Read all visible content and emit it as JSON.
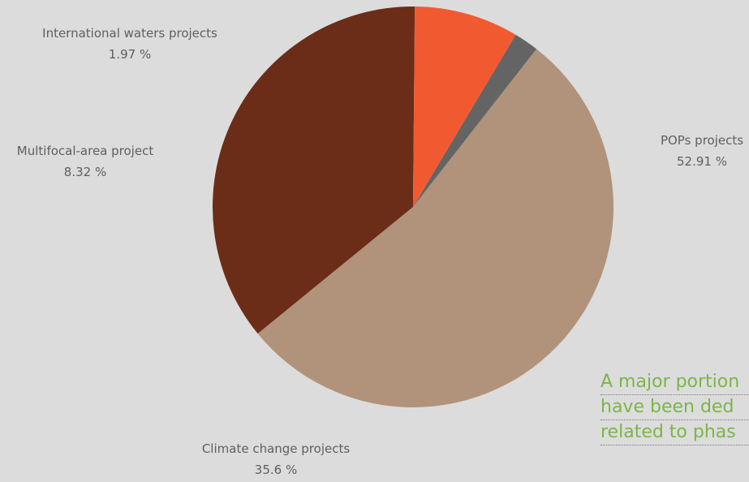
{
  "chart_data": {
    "type": "pie",
    "slices": [
      {
        "label": "POPs projects",
        "value": 52.91,
        "value_text": "52.91 %",
        "color": "#b0937a"
      },
      {
        "label": "Climate change projects",
        "value": 35.6,
        "value_text": "35.6 %",
        "color": "#6b2d18"
      },
      {
        "label": "Multifocal-area project",
        "value": 8.32,
        "value_text": "8.32 %",
        "color": "#f15a31"
      },
      {
        "label": "International waters projects",
        "value": 1.97,
        "value_text": "1.97 %",
        "color": "#646464"
      }
    ],
    "start_angle_deg": -52,
    "direction": "clockwise"
  },
  "callout": {
    "lines": [
      "A major portion",
      "have been ded",
      "related to phas"
    ],
    "color": "#7ab648"
  },
  "background": "#dcdcdc"
}
